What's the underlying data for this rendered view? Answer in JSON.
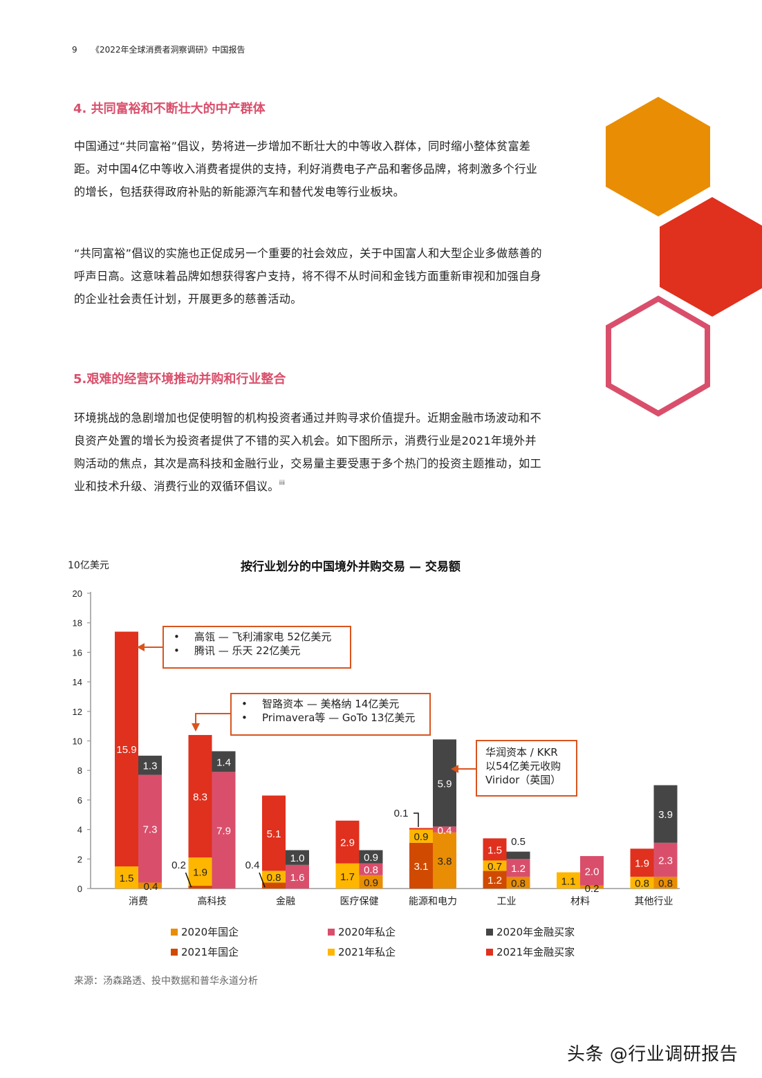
{
  "header": {
    "page_number": "9",
    "report_title": "《2022年全球消费者洞察调研》中国报告"
  },
  "section4": {
    "title": "4. 共同富裕和不断壮大的中产群体",
    "paragraphs": [
      "中国通过“共同富裕”倡议，势将进一步增加不断壮大的中等收入群体，同时缩小整体贫富差距。对中国4亿中等收入消费者提供的支持，利好消费电子产品和奢侈品牌，将刺激多个行业的增长，包括获得政府补贴的新能源汽车和替代发电等行业板块。",
      "“共同富裕”倡议的实施也正促成另一个重要的社会效应，关于中国富人和大型企业多做慈善的呼声日高。这意味着品牌如想获得客户支持，将不得不从时间和金钱方面重新审视和加强自身的企业社会责任计划，开展更多的慈善活动。"
    ]
  },
  "section5": {
    "title": "5.艰难的经营环境推动并购和行业整合",
    "paragraph": "环境挑战的急剧增加也促使明智的机构投资者通过并购寻求价值提升。近期金融市场波动和不良资产处置的增长为投资者提供了不错的买入机会。如下图所示，消费行业是2021年境外并购活动的焦点，其次是高科技和金融行业，交易量主要受惠于多个热门的投资主题推动，如工业和技术升级、消费行业的双循环倡议。",
    "footnote_ref": "iii"
  },
  "decor": {
    "hex_colors": [
      "#e98d04",
      "#e0301e",
      "#d94f6b"
    ]
  },
  "callouts": {
    "consumer": [
      "高瓴 — 飞利浦家电 52亿美元",
      "腾讯 — 乐天 22亿美元"
    ],
    "hightech": [
      "智路资本 — 美格纳 14亿美元",
      "Primavera等 — GoTo 13亿美元"
    ],
    "energy": [
      "华润资本 / KKR",
      "以54亿美元收购",
      "Viridor（英国）"
    ]
  },
  "source": "来源：汤森路透、投中数据和普华永道分析",
  "watermark": "头条 @行业调研报告",
  "chart_data": {
    "type": "bar",
    "subtype": "grouped-stacked",
    "title": "按行业划分的中国境外并购交易 — 交易额",
    "ylabel": "10亿美元",
    "xlabel": "",
    "ylim": [
      0,
      20
    ],
    "yticks": [
      0,
      2,
      4,
      6,
      8,
      10,
      12,
      14,
      16,
      18,
      20
    ],
    "grid": false,
    "legend_position": "bottom",
    "categories": [
      "消费",
      "高科技",
      "金融",
      "医疗保健",
      "能源和电力",
      "工业",
      "材料",
      "其他行业"
    ],
    "colors": {
      "2020年国企": "#e98d04",
      "2020年私企": "#d94f6b",
      "2020年金融买家": "#454545",
      "2021年国企": "#d04a02",
      "2021年私企": "#ffb600",
      "2021年金融买家": "#e0301e"
    },
    "legend": [
      "2020年国企",
      "2020年私企",
      "2020年金融买家",
      "2021年国企",
      "2021年私企",
      "2021年金融买家"
    ],
    "series": [
      {
        "name": "2021年国企",
        "stack": "2021",
        "values": [
          0,
          0.2,
          0.4,
          0,
          3.1,
          1.2,
          0,
          0
        ]
      },
      {
        "name": "2021年私企",
        "stack": "2021",
        "values": [
          1.5,
          1.9,
          0.8,
          1.7,
          0.9,
          0.7,
          1.1,
          0.8
        ]
      },
      {
        "name": "2021年金融买家",
        "stack": "2021",
        "values": [
          15.9,
          8.3,
          5.1,
          2.9,
          0.1,
          1.5,
          0,
          1.9
        ]
      },
      {
        "name": "2020年国企",
        "stack": "2020",
        "values": [
          0.4,
          0,
          0,
          0.9,
          3.8,
          0.8,
          0.2,
          0.8
        ]
      },
      {
        "name": "2020年私企",
        "stack": "2020",
        "values": [
          7.3,
          7.9,
          1.6,
          0.8,
          0.4,
          1.2,
          2.0,
          2.3
        ]
      },
      {
        "name": "2020年金融买家",
        "stack": "2020",
        "values": [
          1.3,
          1.4,
          1.0,
          0.9,
          5.9,
          0.5,
          0,
          3.9
        ]
      }
    ],
    "annotations": [
      {
        "category": "消费",
        "text": "高瓴 — 飞利浦家电 52亿美元; 腾讯 — 乐天 22亿美元"
      },
      {
        "category": "高科技",
        "text": "智路资本 — 美格纳 14亿美元; Primavera等 — GoTo 13亿美元"
      },
      {
        "category": "能源和电力",
        "text": "华润资本 / KKR 以54亿美元收购 Viridor（英国）"
      }
    ]
  }
}
